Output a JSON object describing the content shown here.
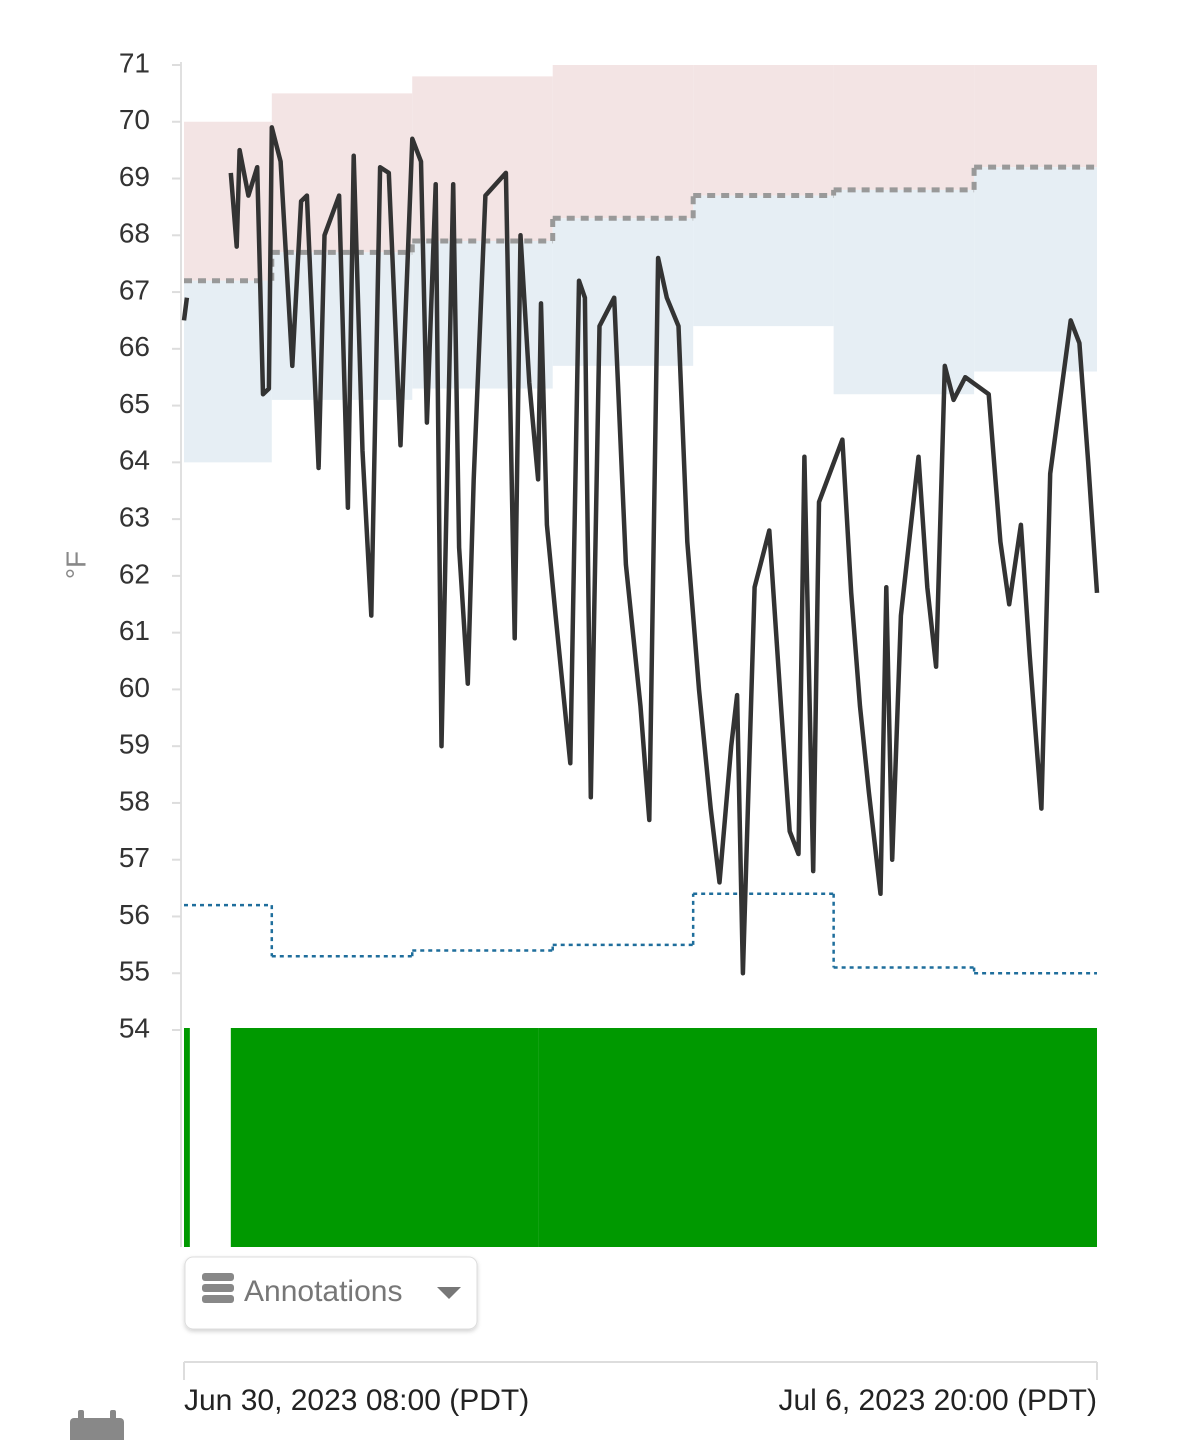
{
  "chart_data": {
    "type": "line",
    "y_label": "°F",
    "ylim": [
      54,
      71
    ],
    "yticks": [
      54,
      55,
      56,
      57,
      58,
      59,
      60,
      61,
      62,
      63,
      64,
      65,
      66,
      67,
      68,
      69,
      70,
      71
    ],
    "xlim": [
      "2023-06-30T08:00",
      "2023-07-06T20:00"
    ],
    "xticks": [
      {
        "value": "2023-06-30T08:00",
        "label": "Jun 30, 2023 08:00 (PDT)"
      },
      {
        "value": "2023-07-06T20:00",
        "label": "Jul 6, 2023 20:00 (PDT)"
      }
    ],
    "x": [
      "2023-06-30T08:00",
      "2023-06-30T08:30",
      "2023-06-30T12:00",
      "2023-06-30T16:00",
      "2023-06-30T17:00",
      "2023-06-30T17:30",
      "2023-06-30T19:00",
      "2023-06-30T20:30",
      "2023-06-30T21:30",
      "2023-06-30T22:30",
      "2023-06-30T23:00",
      "2023-07-01T00:30",
      "2023-07-01T02:30",
      "2023-07-01T04:00",
      "2023-07-01T05:00",
      "2023-07-01T07:00",
      "2023-07-01T08:00",
      "2023-07-01T10:30",
      "2023-07-01T12:00",
      "2023-07-01T13:00",
      "2023-07-01T14:30",
      "2023-07-01T16:00",
      "2023-07-01T17:30",
      "2023-07-01T19:00",
      "2023-07-01T21:00",
      "2023-07-01T23:00",
      "2023-07-02T00:30",
      "2023-07-02T01:30",
      "2023-07-02T03:00",
      "2023-07-02T04:00",
      "2023-07-02T06:00",
      "2023-07-02T07:00",
      "2023-07-02T08:30",
      "2023-07-02T09:30",
      "2023-07-02T11:30",
      "2023-07-02T15:00",
      "2023-07-02T16:30",
      "2023-07-02T17:30",
      "2023-07-02T19:00",
      "2023-07-02T20:30",
      "2023-07-02T21:00",
      "2023-07-02T22:00",
      "2023-07-02T23:30",
      "2023-07-03T02:00",
      "2023-07-03T03:30",
      "2023-07-03T04:30",
      "2023-07-03T05:30",
      "2023-07-03T07:00",
      "2023-07-03T09:30",
      "2023-07-03T11:30",
      "2023-07-03T14:00",
      "2023-07-03T15:30",
      "2023-07-03T17:00",
      "2023-07-03T18:30",
      "2023-07-03T20:30",
      "2023-07-03T22:00",
      "2023-07-04T00:00",
      "2023-07-04T02:00",
      "2023-07-04T03:30",
      "2023-07-04T05:30",
      "2023-07-04T06:30",
      "2023-07-04T07:30",
      "2023-07-04T09:30",
      "2023-07-04T12:00",
      "2023-07-04T14:00",
      "2023-07-04T15:30",
      "2023-07-04T17:00",
      "2023-07-04T18:00",
      "2023-07-04T19:30",
      "2023-07-04T20:30",
      "2023-07-05T00:30",
      "2023-07-05T02:00",
      "2023-07-05T03:30",
      "2023-07-05T05:00",
      "2023-07-05T07:00",
      "2023-07-05T08:00",
      "2023-07-05T09:00",
      "2023-07-05T10:30",
      "2023-07-05T13:30",
      "2023-07-05T15:00",
      "2023-07-05T16:30",
      "2023-07-05T18:00",
      "2023-07-05T19:30",
      "2023-07-05T21:30",
      "2023-07-06T01:30",
      "2023-07-06T03:30",
      "2023-07-06T05:00",
      "2023-07-06T07:00",
      "2023-07-06T08:30",
      "2023-07-06T10:30",
      "2023-07-06T12:00",
      "2023-07-06T15:30",
      "2023-07-06T17:00",
      "2023-07-06T18:30",
      "2023-07-06T20:00"
    ],
    "series": [
      {
        "color": "#333333",
        "values": [
          66.5,
          66.9,
          null,
          69.1,
          67.8,
          69.5,
          68.7,
          69.2,
          65.2,
          65.3,
          69.9,
          69.3,
          65.7,
          68.6,
          68.7,
          63.9,
          68.0,
          68.7,
          63.2,
          69.4,
          64.2,
          61.3,
          69.2,
          69.1,
          64.3,
          69.7,
          69.3,
          64.7,
          68.9,
          59.0,
          68.9,
          62.5,
          60.1,
          63.7,
          68.7,
          69.1,
          60.9,
          68.0,
          65.4,
          63.7,
          66.8,
          62.9,
          61.3,
          58.7,
          67.2,
          66.9,
          58.1,
          66.4,
          66.9,
          62.2,
          59.7,
          57.7,
          67.6,
          66.9,
          66.4,
          62.6,
          60.0,
          57.9,
          56.6,
          59.0,
          59.9,
          55.0,
          61.8,
          62.8,
          59.7,
          57.5,
          57.1,
          64.1,
          56.8,
          63.3,
          64.4,
          61.7,
          59.7,
          58.2,
          56.4,
          61.8,
          57.0,
          61.3,
          64.1,
          61.8,
          60.4,
          65.7,
          65.1,
          65.5,
          65.2,
          62.6,
          61.5,
          62.9,
          60.6,
          57.9,
          63.8,
          66.5,
          66.1,
          64.0,
          61.7
        ]
      }
    ],
    "setpoints": {
      "x": [
        "2023-06-30T08:00",
        "2023-06-30T23:00",
        "2023-07-01T23:00",
        "2023-07-02T23:00",
        "2023-07-03T23:00",
        "2023-07-04T23:00",
        "2023-07-05T23:00"
      ],
      "upper_band_top": [
        70.0,
        70.5,
        70.8,
        71,
        71,
        71,
        71
      ],
      "upper_band_color": "#f3e4e4",
      "target": [
        67.2,
        67.7,
        67.9,
        68.3,
        68.7,
        68.8,
        69.2
      ],
      "target_color": "#999999",
      "lower_band_bottom": [
        64.0,
        65.1,
        65.3,
        65.7,
        66.4,
        65.2,
        65.6
      ],
      "lower_band_color": "#e6eef4",
      "low_limit": [
        56.2,
        55.3,
        55.4,
        55.5,
        56.4,
        55.1,
        55.0
      ],
      "low_limit_color": "#1f6e9c"
    },
    "status": {
      "color": "#009900",
      "start": [
        "2023-06-30T08:00",
        "2023-06-30T16:00",
        "2023-07-02T20:30"
      ],
      "end": [
        "2023-06-30T09:00",
        "2023-07-02T20:30",
        "2023-07-06T20:00"
      ]
    }
  },
  "controls": {
    "annotations": "Annotations"
  }
}
